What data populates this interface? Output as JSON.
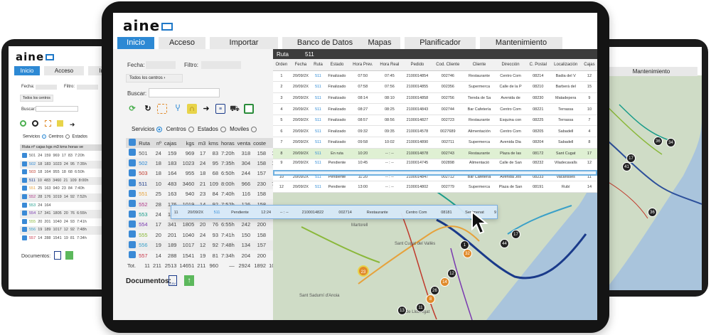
{
  "app": {
    "logo": "aine"
  },
  "tabs": [
    {
      "label": "Inicio",
      "active": true
    },
    {
      "label": "Acceso"
    },
    {
      "label": "Importar"
    },
    {
      "label": "Banco de Datos"
    },
    {
      "label": "Mapas"
    },
    {
      "label": "Planificador"
    },
    {
      "label": "Mantenimiento"
    }
  ],
  "filters": {
    "fecha_label": "Fecha:",
    "filtro_label": "Filtro:",
    "centros_select": "Todos los centros",
    "buscar_label": "Buscar:"
  },
  "view_options": {
    "servicios": "Servicios",
    "centros": "Centros",
    "estados": "Estados",
    "moviles": "Moviles"
  },
  "routes_table": {
    "columns": [
      "Ruta",
      "nº",
      "cajas",
      "kgs",
      "m3",
      "kms",
      "horas",
      "venta",
      "coste",
      "bfo"
    ],
    "rows": [
      {
        "ruta": "501",
        "color": "#555555",
        "n": "24",
        "cajas": "159",
        "kgs": "969",
        "m3": "17",
        "kms": "83",
        "horas": "7:20h",
        "venta": "318",
        "coste": "158",
        "bfo": "160"
      },
      {
        "ruta": "502",
        "color": "#2d89d4",
        "n": "18",
        "cajas": "183",
        "kgs": "1023",
        "m3": "24",
        "kms": "95",
        "horas": "7:35h",
        "venta": "304",
        "coste": "158",
        "bfo": "146"
      },
      {
        "ruta": "503",
        "color": "#c0392b",
        "n": "18",
        "cajas": "164",
        "kgs": "955",
        "m3": "18",
        "kms": "68",
        "horas": "6:50h",
        "venta": "244",
        "coste": "157",
        "bfo": "88"
      },
      {
        "ruta": "511",
        "color": "#1a3a8a",
        "n": "10",
        "cajas": "483",
        "kgs": "3460",
        "m3": "21",
        "kms": "109",
        "horas": "8:00h",
        "venta": "966",
        "coste": "230",
        "bfo": "736"
      },
      {
        "ruta": "551",
        "color": "#e6a23c",
        "n": "25",
        "cajas": "163",
        "kgs": "940",
        "m3": "23",
        "kms": "84",
        "horas": "7:40h",
        "venta": "116",
        "coste": "158",
        "bfo": "-43"
      },
      {
        "ruta": "552",
        "color": "#b03a8a",
        "n": "28",
        "cajas": "176",
        "kgs": "1019",
        "m3": "14",
        "kms": "92",
        "horas": "7:52h",
        "venta": "126",
        "coste": "158",
        "bfo": "-32"
      },
      {
        "ruta": "553",
        "color": "#1a9c8a",
        "n": "24",
        "cajas": "164",
        "kgs": "",
        "m3": "",
        "kms": "",
        "horas": "",
        "venta": "",
        "coste": "",
        "bfo": ""
      },
      {
        "ruta": "554",
        "color": "#7a3ab0",
        "n": "17",
        "cajas": "341",
        "kgs": "1805",
        "m3": "20",
        "kms": "76",
        "horas": "6:55h",
        "venta": "242",
        "coste": "200",
        "bfo": "42"
      },
      {
        "ruta": "555",
        "color": "#8ab83a",
        "n": "20",
        "cajas": "201",
        "kgs": "1040",
        "m3": "24",
        "kms": "93",
        "horas": "7:41h",
        "venta": "150",
        "coste": "158",
        "bfo": "-8"
      },
      {
        "ruta": "556",
        "color": "#3aa0c8",
        "n": "19",
        "cajas": "189",
        "kgs": "1017",
        "m3": "12",
        "kms": "92",
        "horas": "7:48h",
        "venta": "134",
        "coste": "157",
        "bfo": "-23"
      },
      {
        "ruta": "557",
        "color": "#c8374a",
        "n": "14",
        "cajas": "288",
        "kgs": "1541",
        "m3": "19",
        "kms": "81",
        "horas": "7:34h",
        "venta": "204",
        "coste": "200",
        "bfo": "4"
      }
    ],
    "total": {
      "label": "Tot.",
      "n": "11",
      "cajas": "211",
      "kgs": "2513",
      "m3": "14651",
      "kms": "211",
      "horas": "960",
      "venta": "—",
      "coste": "2924",
      "bfo": "1892",
      "extra": "1030"
    }
  },
  "documentos_label": "Documentos:",
  "route_header": {
    "label": "Ruta",
    "value": "511"
  },
  "orders_table": {
    "columns": [
      "Orden",
      "Fecha",
      "Ruta",
      "Estado",
      "Hora Prev.",
      "Hora Real",
      "Pedido",
      "Cod. Cliente",
      "Cliente",
      "Dirección",
      "C. Postal",
      "Localización",
      "Cajas"
    ],
    "rows": [
      [
        "1",
        "20/09/2X",
        "511",
        "Finalizado",
        "07:50",
        "07:45",
        "2100014854",
        "002746",
        "Restaurante",
        "Centro Com",
        "08214",
        "Badia del V",
        "12"
      ],
      [
        "2",
        "20/09/2X",
        "511",
        "Finalizado",
        "07:58",
        "07:56",
        "2100014855",
        "002356",
        "Supermerca",
        "Calle de la P",
        "08210",
        "Barberà del",
        "15"
      ],
      [
        "3",
        "20/09/2X",
        "511",
        "Finalizado",
        "08:14",
        "08:10",
        "2100014858",
        "002756",
        "Tienda de Sa",
        "Avenida de",
        "08230",
        "Matadepera",
        "9"
      ],
      [
        "4",
        "20/09/2X",
        "511",
        "Finalizado",
        "08:27",
        "08:25",
        "2100014843",
        "002744",
        "Bar Cafetería",
        "Centro Com",
        "08221",
        "Terrassa",
        "10"
      ],
      [
        "5",
        "20/09/2X",
        "511",
        "Finalizado",
        "08:57",
        "08:56",
        "2100014827",
        "002723",
        "Restaurante",
        "Esquina con",
        "08225",
        "Terrassa",
        "7"
      ],
      [
        "6",
        "20/09/2X",
        "511",
        "Finalizado",
        "09:32",
        "09:35",
        "2100014578",
        "0027689",
        "Alimentación",
        "Centro Com",
        "08205",
        "Sabadell",
        "4"
      ],
      [
        "7",
        "20/09/2X",
        "511",
        "Finalizado",
        "09:58",
        "10:02",
        "2100014890",
        "002711",
        "Supermerca",
        "Avenida Dia",
        "08204",
        "Sabadell",
        "8"
      ],
      [
        "8",
        "20/09/2X",
        "511",
        "En ruta",
        "10:20",
        "-- : --",
        "2100014878",
        "002743",
        "Restaurante",
        "Plaza de las",
        "08172",
        "Sant Cugat",
        "17"
      ],
      [
        "9",
        "20/09/2X",
        "511",
        "Pendiente",
        "10:45",
        "-- : --",
        "2100014745",
        "002898",
        "Alimentació",
        "Calle de San",
        "08232",
        "Viladecavalls",
        "12"
      ],
      [
        "10",
        "20/09/2X",
        "511",
        "Pendiente",
        "11:20",
        "-- : --",
        "2100014847",
        "002712",
        "Bar Cafetería",
        "Avenida Jos",
        "08233",
        "Vacarisses",
        "11"
      ],
      [
        "12",
        "20/09/2X",
        "511",
        "Pendiente",
        "13:00",
        "-- : --",
        "2100014802",
        "002779",
        "Supermerca",
        "Plaza de San",
        "08191",
        "Rubí",
        "14"
      ]
    ],
    "dragged_row": [
      "11",
      "20/09/2X",
      "511",
      "Pendiente",
      "12:24",
      "-- : --",
      "2100014822",
      "002714",
      "Restaurante",
      "Centro Com",
      "08181",
      "Sentmenat",
      "9"
    ]
  },
  "map_labels": {
    "a": "Martorell",
    "b": "Sant Cugat del Vallès",
    "c": "Sant Sadurní d'Anoia",
    "d": "Vilade Llobregat"
  },
  "right_tablet": {
    "tab": "Mantenimiento"
  },
  "left_tablet": {
    "tabs": [
      "Inicio",
      "Acceso",
      "Im"
    ],
    "fecha": "Fecha:",
    "filtro": "Filtro:",
    "select": "Todos los centros",
    "buscar": "Buscar:",
    "opts": "Servicios",
    "opts2": "Centros",
    "opts3": "Estados",
    "documentos": "Documentos:",
    "header": "Ruta nº cajas kgs m3 kms horas ve"
  }
}
